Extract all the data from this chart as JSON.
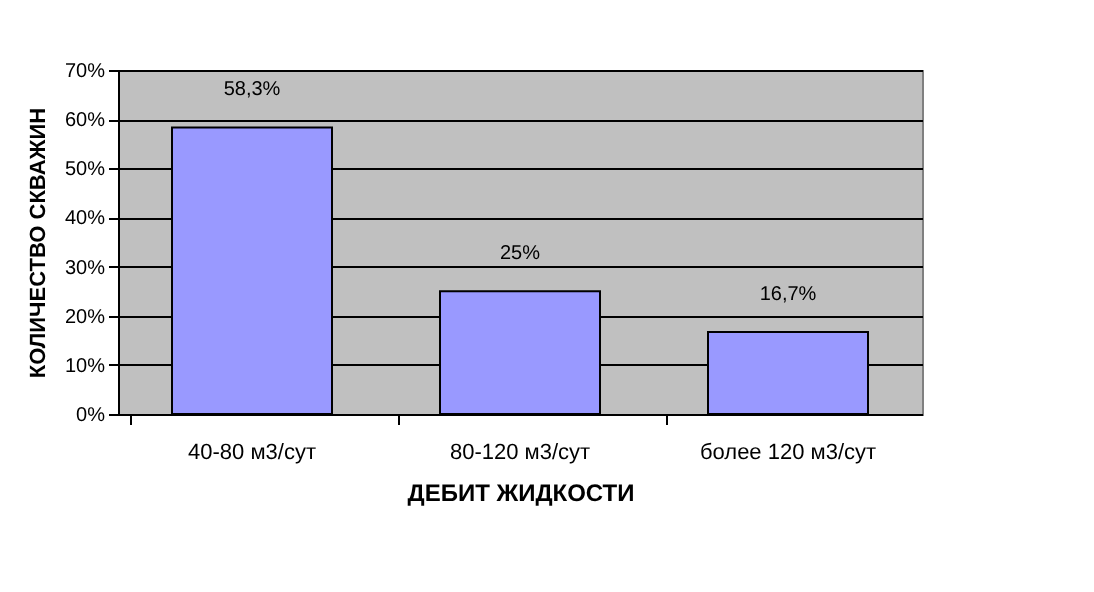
{
  "chart_data": {
    "type": "bar",
    "xlabel": "ДЕБИТ ЖИДКОСТИ",
    "ylabel": "КОЛИЧЕСТВО СКВАЖИН",
    "categories": [
      "40-80 м3/сут",
      "80-120 м3/сут",
      "более 120 м3/сут"
    ],
    "values": [
      58.3,
      25,
      16.7
    ],
    "color": "#9999ff",
    "value_labels": [
      "58,3%",
      "25%",
      "16,7%"
    ],
    "ylim": [
      0,
      70
    ],
    "yticks": [
      {
        "value": 0,
        "label": "0%"
      },
      {
        "value": 10,
        "label": "10%"
      },
      {
        "value": 20,
        "label": "20%"
      },
      {
        "value": 30,
        "label": "30%"
      },
      {
        "value": 40,
        "label": "40%"
      },
      {
        "value": 50,
        "label": "50%"
      },
      {
        "value": 60,
        "label": "60%"
      },
      {
        "value": 70,
        "label": "70%"
      }
    ],
    "grid": "y",
    "legend": false
  }
}
